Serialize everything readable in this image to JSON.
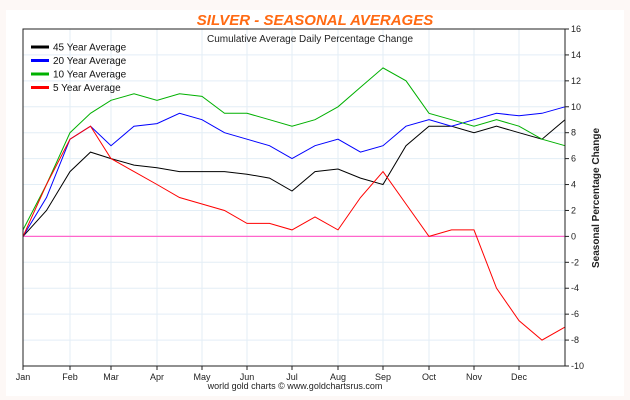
{
  "chart_data": {
    "type": "line",
    "title": "SILVER - SEASONAL AVERAGES",
    "subtitle": "Cumulative Average Daily Percentage Change",
    "ylabel": "Seasonal Percentage Change",
    "credit": "world gold charts © www.goldchartsrus.com",
    "ylim": [
      -10,
      16
    ],
    "yticks": [
      16,
      14,
      12,
      10,
      8,
      6,
      4,
      2,
      0,
      -2,
      -4,
      -6,
      -8,
      -10
    ],
    "x_tick_labels": [
      "Jan",
      "Feb",
      "Mar",
      "Apr",
      "May",
      "Jun",
      "Jul",
      "Aug",
      "Sep",
      "Oct",
      "Nov",
      "Dec"
    ],
    "x_months": [
      0,
      0.5,
      1,
      1.5,
      2,
      2.5,
      3,
      3.5,
      4,
      4.5,
      5,
      5.5,
      6,
      6.5,
      7,
      7.5,
      8,
      8.5,
      9,
      9.5,
      10,
      10.5,
      11,
      11.5,
      12
    ],
    "grid": true,
    "legend": "top-left",
    "reference_line": {
      "y": 0,
      "color": "#ff66cc"
    },
    "series": [
      {
        "name": "45 Year Average",
        "color": "#000000",
        "values": [
          0,
          2,
          5,
          6.5,
          6,
          5.5,
          5.3,
          5,
          5,
          5,
          4.8,
          4.5,
          3.5,
          5,
          5.2,
          4.5,
          4,
          7,
          8.5,
          8.5,
          8,
          8.5,
          8,
          7.5,
          9
        ]
      },
      {
        "name": "20 Year Average",
        "color": "#0000ff",
        "values": [
          0,
          3,
          7.5,
          8.5,
          7,
          8.5,
          8.7,
          9.5,
          9,
          8,
          7.5,
          7,
          6,
          7,
          7.5,
          6.5,
          7,
          8.5,
          9,
          8.5,
          9,
          9.5,
          9.3,
          9.5,
          10
        ]
      },
      {
        "name": "10 Year Average",
        "color": "#00b000",
        "values": [
          0.5,
          4,
          8,
          9.5,
          10.5,
          11,
          10.5,
          11,
          10.8,
          9.5,
          9.5,
          9,
          8.5,
          9,
          10,
          11.5,
          13,
          12,
          9.5,
          9,
          8.5,
          9,
          8.5,
          7.5,
          7
        ]
      },
      {
        "name": "5 Year Average",
        "color": "#ff0000",
        "values": [
          0,
          4,
          7.5,
          8.5,
          6,
          5,
          4,
          3,
          2.5,
          2,
          1,
          1,
          0.5,
          1.5,
          0.5,
          3,
          5,
          2.5,
          0,
          0.5,
          0.5,
          -4,
          -6.5,
          -8,
          -7
        ]
      }
    ]
  }
}
